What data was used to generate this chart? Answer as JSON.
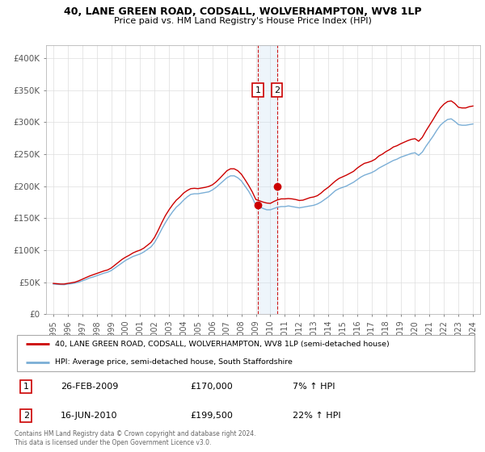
{
  "title1": "40, LANE GREEN ROAD, CODSALL, WOLVERHAMPTON, WV8 1LP",
  "title2": "Price paid vs. HM Land Registry's House Price Index (HPI)",
  "legend_line1": "40, LANE GREEN ROAD, CODSALL, WOLVERHAMPTON, WV8 1LP (semi-detached house)",
  "legend_line2": "HPI: Average price, semi-detached house, South Staffordshire",
  "footer": "Contains HM Land Registry data © Crown copyright and database right 2024.\nThis data is licensed under the Open Government Licence v3.0.",
  "sale1_label": "1",
  "sale1_date": "26-FEB-2009",
  "sale1_price": "£170,000",
  "sale1_hpi": "7% ↑ HPI",
  "sale2_label": "2",
  "sale2_date": "16-JUN-2010",
  "sale2_price": "£199,500",
  "sale2_hpi": "22% ↑ HPI",
  "sale1_x": 2009.15,
  "sale1_y": 170000,
  "sale2_x": 2010.45,
  "sale2_y": 199500,
  "vline_x1": 2009.15,
  "vline_x2": 2010.45,
  "red_color": "#cc0000",
  "blue_color": "#7aaed6",
  "shade_color": "#d0e4f5",
  "background_color": "#ffffff",
  "grid_color": "#dddddd",
  "ylim": [
    0,
    420000
  ],
  "xlim_min": 1994.5,
  "xlim_max": 2024.5,
  "yticks": [
    0,
    50000,
    100000,
    150000,
    200000,
    250000,
    300000,
    350000,
    400000
  ],
  "ytick_labels": [
    "£0",
    "£50K",
    "£100K",
    "£150K",
    "£200K",
    "£250K",
    "£300K",
    "£350K",
    "£400K"
  ],
  "xtick_years": [
    1995,
    1996,
    1997,
    1998,
    1999,
    2000,
    2001,
    2002,
    2003,
    2004,
    2005,
    2006,
    2007,
    2008,
    2009,
    2010,
    2011,
    2012,
    2013,
    2014,
    2015,
    2016,
    2017,
    2018,
    2019,
    2020,
    2021,
    2022,
    2023,
    2024
  ],
  "hpi_data": {
    "x": [
      1995.0,
      1995.25,
      1995.5,
      1995.75,
      1996.0,
      1996.25,
      1996.5,
      1996.75,
      1997.0,
      1997.25,
      1997.5,
      1997.75,
      1998.0,
      1998.25,
      1998.5,
      1998.75,
      1999.0,
      1999.25,
      1999.5,
      1999.75,
      2000.0,
      2000.25,
      2000.5,
      2000.75,
      2001.0,
      2001.25,
      2001.5,
      2001.75,
      2002.0,
      2002.25,
      2002.5,
      2002.75,
      2003.0,
      2003.25,
      2003.5,
      2003.75,
      2004.0,
      2004.25,
      2004.5,
      2004.75,
      2005.0,
      2005.25,
      2005.5,
      2005.75,
      2006.0,
      2006.25,
      2006.5,
      2006.75,
      2007.0,
      2007.25,
      2007.5,
      2007.75,
      2008.0,
      2008.25,
      2008.5,
      2008.75,
      2009.0,
      2009.25,
      2009.5,
      2009.75,
      2010.0,
      2010.25,
      2010.5,
      2010.75,
      2011.0,
      2011.25,
      2011.5,
      2011.75,
      2012.0,
      2012.25,
      2012.5,
      2012.75,
      2013.0,
      2013.25,
      2013.5,
      2013.75,
      2014.0,
      2014.25,
      2014.5,
      2014.75,
      2015.0,
      2015.25,
      2015.5,
      2015.75,
      2016.0,
      2016.25,
      2016.5,
      2016.75,
      2017.0,
      2017.25,
      2017.5,
      2017.75,
      2018.0,
      2018.25,
      2018.5,
      2018.75,
      2019.0,
      2019.25,
      2019.5,
      2019.75,
      2020.0,
      2020.25,
      2020.5,
      2020.75,
      2021.0,
      2021.25,
      2021.5,
      2021.75,
      2022.0,
      2022.25,
      2022.5,
      2022.75,
      2023.0,
      2023.25,
      2023.5,
      2023.75,
      2024.0
    ],
    "y": [
      47000,
      46500,
      46200,
      46000,
      47000,
      47500,
      48500,
      50000,
      52000,
      54000,
      56500,
      58000,
      60000,
      62000,
      64000,
      65500,
      68000,
      72000,
      76000,
      80000,
      84000,
      87000,
      90000,
      92000,
      94000,
      97000,
      101000,
      105000,
      112000,
      122000,
      133000,
      143000,
      152000,
      160000,
      167000,
      172000,
      178000,
      183000,
      187000,
      188000,
      188000,
      189000,
      190000,
      191000,
      194000,
      198000,
      203000,
      208000,
      213000,
      216000,
      216000,
      213000,
      208000,
      200000,
      192000,
      182000,
      170000,
      168000,
      165000,
      163000,
      163000,
      165000,
      167000,
      168000,
      168000,
      169000,
      168000,
      167000,
      166000,
      167000,
      168000,
      169000,
      170000,
      172000,
      175000,
      179000,
      183000,
      188000,
      193000,
      196000,
      198000,
      200000,
      203000,
      206000,
      210000,
      214000,
      217000,
      219000,
      221000,
      224000,
      228000,
      231000,
      234000,
      237000,
      240000,
      242000,
      245000,
      247000,
      249000,
      251000,
      252000,
      248000,
      253000,
      262000,
      270000,
      278000,
      287000,
      295000,
      300000,
      304000,
      305000,
      301000,
      296000,
      295000,
      295000,
      296000,
      297000
    ]
  },
  "property_data": {
    "x": [
      1995.0,
      1995.25,
      1995.5,
      1995.75,
      1996.0,
      1996.25,
      1996.5,
      1996.75,
      1997.0,
      1997.25,
      1997.5,
      1997.75,
      1998.0,
      1998.25,
      1998.5,
      1998.75,
      1999.0,
      1999.25,
      1999.5,
      1999.75,
      2000.0,
      2000.25,
      2000.5,
      2000.75,
      2001.0,
      2001.25,
      2001.5,
      2001.75,
      2002.0,
      2002.25,
      2002.5,
      2002.75,
      2003.0,
      2003.25,
      2003.5,
      2003.75,
      2004.0,
      2004.25,
      2004.5,
      2004.75,
      2005.0,
      2005.25,
      2005.5,
      2005.75,
      2006.0,
      2006.25,
      2006.5,
      2006.75,
      2007.0,
      2007.25,
      2007.5,
      2007.75,
      2008.0,
      2008.25,
      2008.5,
      2008.75,
      2009.0,
      2009.25,
      2009.5,
      2009.75,
      2010.0,
      2010.25,
      2010.5,
      2010.75,
      2011.0,
      2011.25,
      2011.5,
      2011.75,
      2012.0,
      2012.25,
      2012.5,
      2012.75,
      2013.0,
      2013.25,
      2013.5,
      2013.75,
      2014.0,
      2014.25,
      2014.5,
      2014.75,
      2015.0,
      2015.25,
      2015.5,
      2015.75,
      2016.0,
      2016.25,
      2016.5,
      2016.75,
      2017.0,
      2017.25,
      2017.5,
      2017.75,
      2018.0,
      2018.25,
      2018.5,
      2018.75,
      2019.0,
      2019.25,
      2019.5,
      2019.75,
      2020.0,
      2020.25,
      2020.5,
      2020.75,
      2021.0,
      2021.25,
      2021.5,
      2021.75,
      2022.0,
      2022.25,
      2022.5,
      2022.75,
      2023.0,
      2023.25,
      2023.5,
      2023.75,
      2024.0
    ],
    "y": [
      48000,
      47500,
      47000,
      47000,
      48000,
      49000,
      50000,
      52000,
      54500,
      57000,
      59500,
      61500,
      63500,
      65500,
      67500,
      69000,
      72000,
      76500,
      81000,
      85500,
      89000,
      92000,
      95500,
      98000,
      100000,
      103000,
      107500,
      112000,
      120000,
      131000,
      143000,
      154000,
      163000,
      171000,
      178000,
      183000,
      189000,
      193000,
      196000,
      196500,
      196000,
      197000,
      198000,
      199500,
      202000,
      206500,
      212000,
      218000,
      224000,
      227000,
      227000,
      224000,
      218500,
      210000,
      201000,
      191000,
      179000,
      177000,
      175000,
      173500,
      173000,
      176000,
      178500,
      180000,
      180000,
      180500,
      180000,
      179000,
      177500,
      178000,
      180000,
      182000,
      183000,
      185000,
      189000,
      194000,
      198000,
      203000,
      208000,
      212000,
      214500,
      217000,
      220000,
      223000,
      228000,
      232000,
      235500,
      237000,
      239000,
      242000,
      247000,
      250000,
      254000,
      257000,
      261000,
      263000,
      266000,
      268500,
      271000,
      273000,
      274000,
      270000,
      276000,
      286000,
      295000,
      304000,
      313500,
      322000,
      328000,
      332000,
      333000,
      329000,
      323000,
      322000,
      322000,
      324000,
      325000
    ]
  }
}
